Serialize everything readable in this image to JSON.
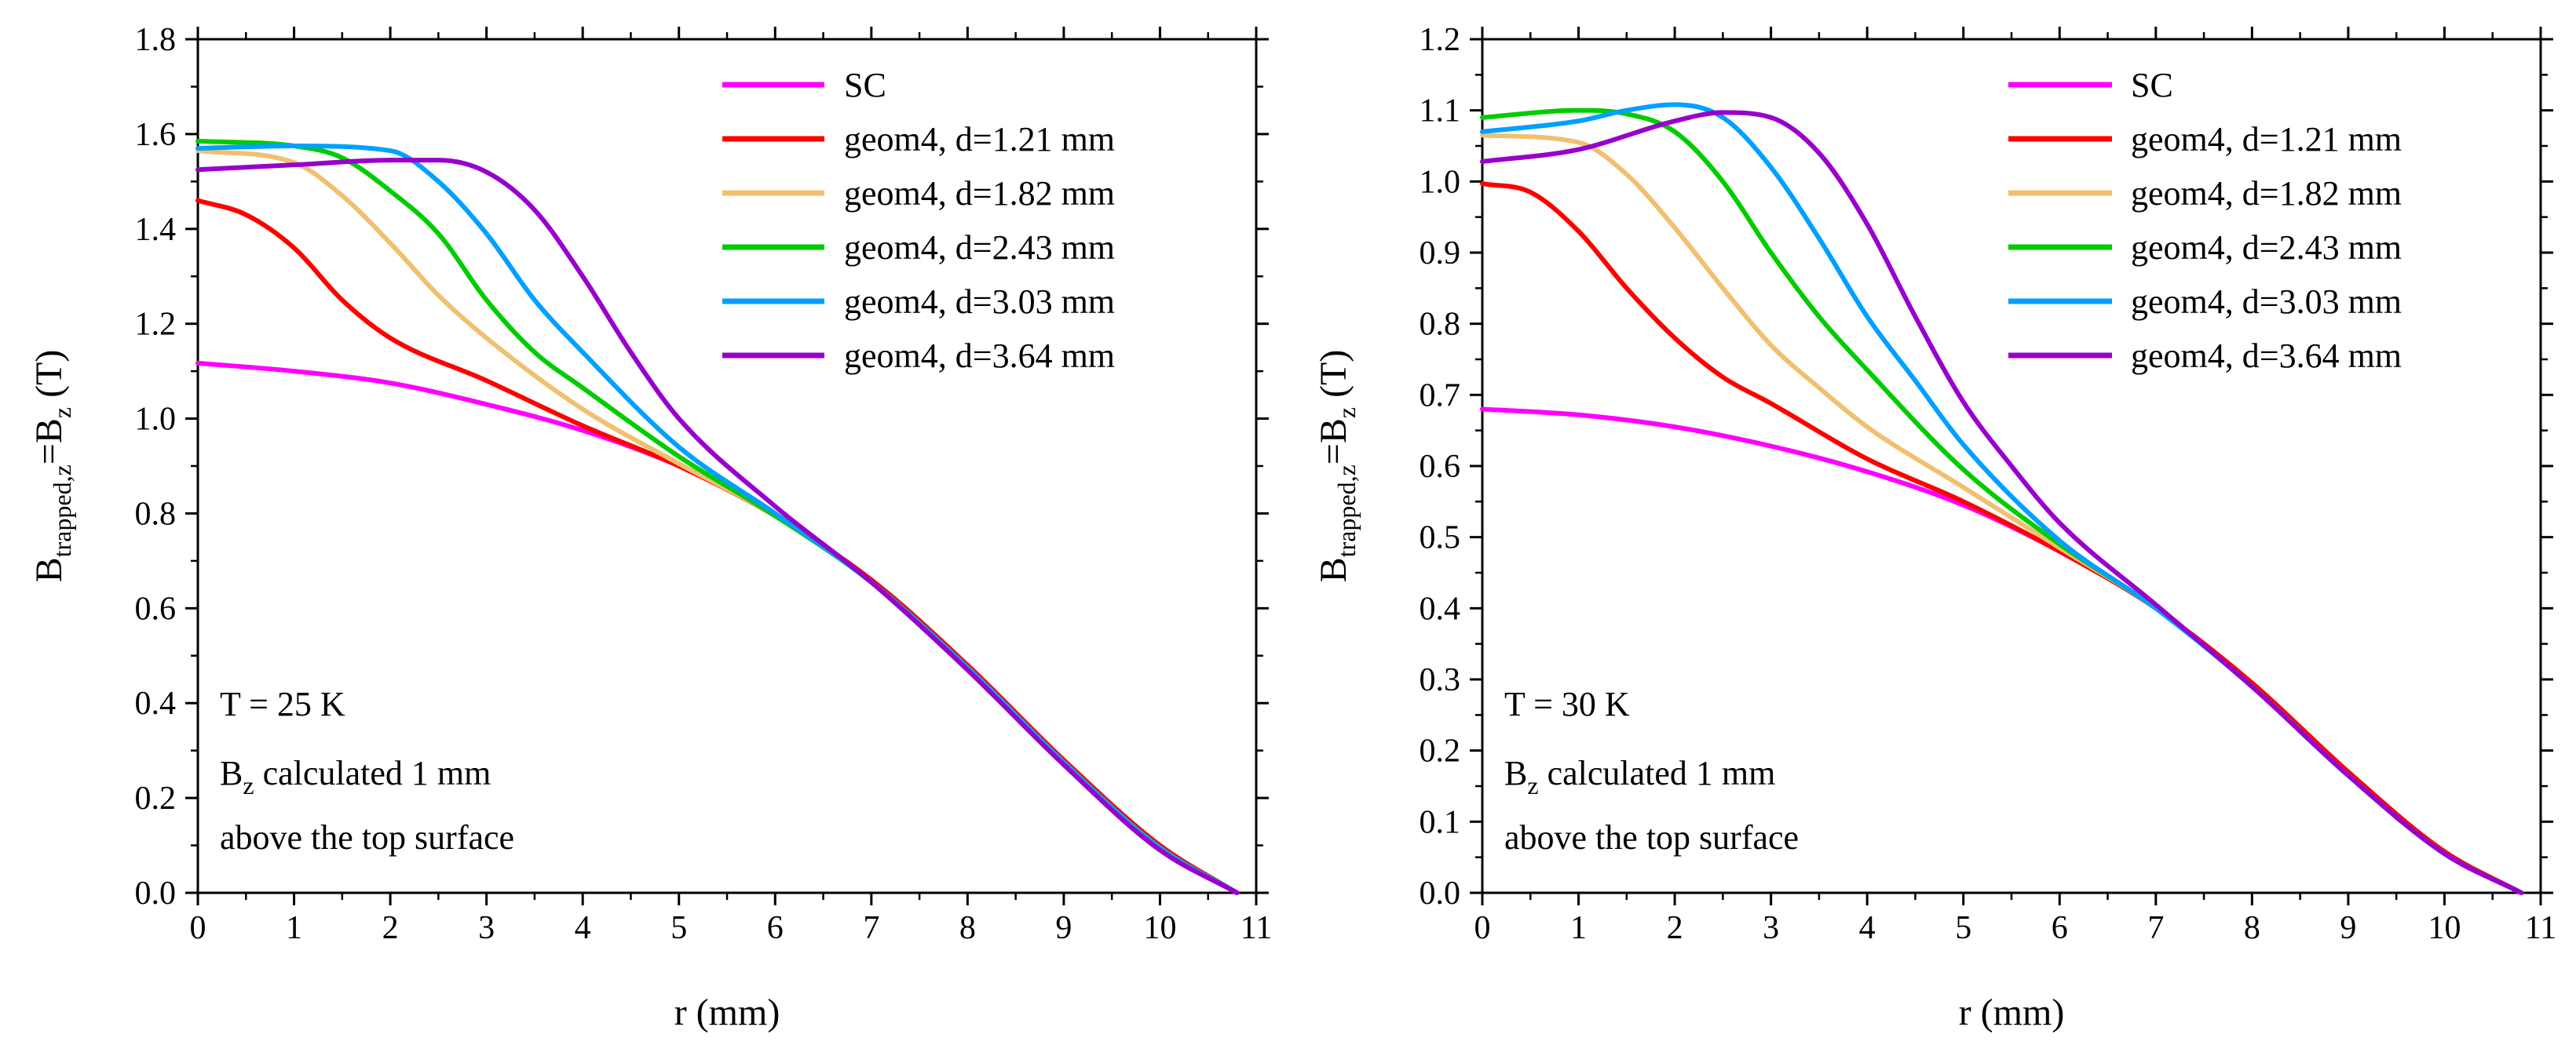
{
  "chart_data": [
    {
      "type": "line",
      "panel": "left",
      "xlabel": "r (mm)",
      "ylabel_parts": {
        "main": "B",
        "sub": "trapped,z",
        "eq": "=B",
        "sub2": "z",
        "unit": " (T)"
      },
      "xlim": [
        0,
        11
      ],
      "ylim": [
        0,
        1.8
      ],
      "x_ticks": [
        0,
        1,
        2,
        3,
        4,
        5,
        6,
        7,
        8,
        9,
        10,
        11
      ],
      "y_ticks": [
        0.0,
        0.2,
        0.4,
        0.6,
        0.8,
        1.0,
        1.2,
        1.4,
        1.6,
        1.8
      ],
      "y_tick_decimals": 1,
      "grid": false,
      "legend_position": "top-right",
      "annotation": {
        "line1": "T = 25 K",
        "line2_main": "B",
        "line2_sub": "z",
        "line2_rest": " calculated 1 mm",
        "line3": "above the top surface"
      },
      "series": [
        {
          "name": "SC",
          "color": "#ff00ff",
          "points": [
            [
              0,
              1.117
            ],
            [
              1,
              1.1
            ],
            [
              2,
              1.075
            ],
            [
              3,
              1.03
            ],
            [
              4,
              0.975
            ],
            [
              5,
              0.9
            ],
            [
              6,
              0.795
            ],
            [
              7,
              0.655
            ],
            [
              8,
              0.475
            ],
            [
              9,
              0.275
            ],
            [
              10,
              0.095
            ],
            [
              10.8,
              0.0
            ]
          ]
        },
        {
          "name": "geom4, d=1.21 mm",
          "color": "#ff0000",
          "points": [
            [
              0,
              1.46
            ],
            [
              0.5,
              1.43
            ],
            [
              1,
              1.36
            ],
            [
              1.5,
              1.25
            ],
            [
              2,
              1.17
            ],
            [
              3,
              1.08
            ],
            [
              4,
              0.985
            ],
            [
              5,
              0.9
            ],
            [
              6,
              0.795
            ],
            [
              7,
              0.66
            ],
            [
              8,
              0.48
            ],
            [
              9,
              0.28
            ],
            [
              10,
              0.1
            ],
            [
              10.8,
              0.0
            ]
          ]
        },
        {
          "name": "geom4, d=1.82 mm",
          "color": "#f0c070",
          "points": [
            [
              0,
              1.565
            ],
            [
              1,
              1.54
            ],
            [
              1.5,
              1.47
            ],
            [
              2,
              1.37
            ],
            [
              2.5,
              1.26
            ],
            [
              3,
              1.17
            ],
            [
              4,
              1.02
            ],
            [
              5,
              0.905
            ],
            [
              6,
              0.795
            ],
            [
              7,
              0.655
            ],
            [
              8,
              0.475
            ],
            [
              9,
              0.275
            ],
            [
              10,
              0.095
            ],
            [
              10.8,
              0.0
            ]
          ]
        },
        {
          "name": "geom4, d=2.43 mm",
          "color": "#00cc00",
          "points": [
            [
              0,
              1.585
            ],
            [
              1,
              1.575
            ],
            [
              1.5,
              1.55
            ],
            [
              2,
              1.48
            ],
            [
              2.5,
              1.39
            ],
            [
              3,
              1.25
            ],
            [
              3.5,
              1.14
            ],
            [
              4,
              1.065
            ],
            [
              5,
              0.92
            ],
            [
              6,
              0.795
            ],
            [
              7,
              0.655
            ],
            [
              8,
              0.475
            ],
            [
              9,
              0.275
            ],
            [
              10,
              0.095
            ],
            [
              10.8,
              0.0
            ]
          ]
        },
        {
          "name": "geom4, d=3.03 mm",
          "color": "#00a0ff",
          "points": [
            [
              0,
              1.57
            ],
            [
              1,
              1.575
            ],
            [
              2,
              1.565
            ],
            [
              2.5,
              1.5
            ],
            [
              3,
              1.39
            ],
            [
              3.5,
              1.25
            ],
            [
              4,
              1.14
            ],
            [
              5,
              0.94
            ],
            [
              6,
              0.8
            ],
            [
              7,
              0.655
            ],
            [
              8,
              0.475
            ],
            [
              9,
              0.275
            ],
            [
              10,
              0.095
            ],
            [
              10.8,
              0.0
            ]
          ]
        },
        {
          "name": "geom4, d=3.64 mm",
          "color": "#9900cc",
          "points": [
            [
              0,
              1.525
            ],
            [
              1,
              1.535
            ],
            [
              2,
              1.545
            ],
            [
              2.5,
              1.545
            ],
            [
              3,
              1.52
            ],
            [
              3.5,
              1.44
            ],
            [
              4,
              1.3
            ],
            [
              4.5,
              1.14
            ],
            [
              5,
              1.0
            ],
            [
              6,
              0.815
            ],
            [
              7,
              0.655
            ],
            [
              8,
              0.47
            ],
            [
              9,
              0.27
            ],
            [
              10,
              0.09
            ],
            [
              10.8,
              0.0
            ]
          ]
        }
      ]
    },
    {
      "type": "line",
      "panel": "right",
      "xlabel": "r (mm)",
      "ylabel_parts": {
        "main": "B",
        "sub": "trapped,z",
        "eq": "=B",
        "sub2": "z",
        "unit": " (T)"
      },
      "xlim": [
        0,
        11
      ],
      "ylim": [
        0,
        1.2
      ],
      "x_ticks": [
        0,
        1,
        2,
        3,
        4,
        5,
        6,
        7,
        8,
        9,
        10,
        11
      ],
      "y_ticks": [
        0.0,
        0.1,
        0.2,
        0.3,
        0.4,
        0.5,
        0.6,
        0.7,
        0.8,
        0.9,
        1.0,
        1.1,
        1.2
      ],
      "y_tick_decimals": 1,
      "grid": false,
      "legend_position": "top-right",
      "annotation": {
        "line1": "T = 30 K",
        "line2_main": "B",
        "line2_sub": "z",
        "line2_rest": " calculated 1 mm",
        "line3": "above the top surface"
      },
      "series": [
        {
          "name": "SC",
          "color": "#ff00ff",
          "points": [
            [
              0,
              0.68
            ],
            [
              1,
              0.672
            ],
            [
              2,
              0.655
            ],
            [
              3,
              0.628
            ],
            [
              4,
              0.592
            ],
            [
              5,
              0.545
            ],
            [
              6,
              0.48
            ],
            [
              7,
              0.4
            ],
            [
              8,
              0.29
            ],
            [
              9,
              0.165
            ],
            [
              10,
              0.055
            ],
            [
              10.8,
              0.0
            ]
          ]
        },
        {
          "name": "geom4, d=1.21 mm",
          "color": "#ff0000",
          "points": [
            [
              0,
              0.997
            ],
            [
              0.5,
              0.985
            ],
            [
              1,
              0.93
            ],
            [
              1.5,
              0.85
            ],
            [
              2,
              0.78
            ],
            [
              2.5,
              0.725
            ],
            [
              3,
              0.688
            ],
            [
              4,
              0.61
            ],
            [
              5,
              0.55
            ],
            [
              6,
              0.48
            ],
            [
              7,
              0.4
            ],
            [
              8,
              0.295
            ],
            [
              9,
              0.17
            ],
            [
              10,
              0.058
            ],
            [
              10.8,
              0.0
            ]
          ]
        },
        {
          "name": "geom4, d=1.82 mm",
          "color": "#f0c070",
          "points": [
            [
              0,
              1.065
            ],
            [
              1,
              1.055
            ],
            [
              1.5,
              1.01
            ],
            [
              2,
              0.935
            ],
            [
              2.5,
              0.85
            ],
            [
              3,
              0.77
            ],
            [
              3.5,
              0.71
            ],
            [
              4,
              0.655
            ],
            [
              5,
              0.57
            ],
            [
              6,
              0.485
            ],
            [
              7,
              0.4
            ],
            [
              8,
              0.29
            ],
            [
              9,
              0.165
            ],
            [
              10,
              0.055
            ],
            [
              10.8,
              0.0
            ]
          ]
        },
        {
          "name": "geom4, d=2.43 mm",
          "color": "#00cc00",
          "points": [
            [
              0,
              1.09
            ],
            [
              1,
              1.1
            ],
            [
              1.5,
              1.095
            ],
            [
              2,
              1.07
            ],
            [
              2.5,
              1.0
            ],
            [
              3,
              0.9
            ],
            [
              3.5,
              0.81
            ],
            [
              4,
              0.735
            ],
            [
              5,
              0.595
            ],
            [
              6,
              0.49
            ],
            [
              7,
              0.4
            ],
            [
              8,
              0.29
            ],
            [
              9,
              0.165
            ],
            [
              10,
              0.055
            ],
            [
              10.8,
              0.0
            ]
          ]
        },
        {
          "name": "geom4, d=3.03 mm",
          "color": "#00a0ff",
          "points": [
            [
              0,
              1.07
            ],
            [
              1,
              1.085
            ],
            [
              1.5,
              1.1
            ],
            [
              2,
              1.108
            ],
            [
              2.5,
              1.09
            ],
            [
              3,
              1.02
            ],
            [
              3.5,
              0.92
            ],
            [
              4,
              0.81
            ],
            [
              4.5,
              0.72
            ],
            [
              5,
              0.63
            ],
            [
              6,
              0.495
            ],
            [
              7,
              0.4
            ],
            [
              8,
              0.29
            ],
            [
              9,
              0.165
            ],
            [
              10,
              0.055
            ],
            [
              10.8,
              0.0
            ]
          ]
        },
        {
          "name": "geom4, d=3.64 mm",
          "color": "#9900cc",
          "points": [
            [
              0,
              1.028
            ],
            [
              1,
              1.045
            ],
            [
              2,
              1.085
            ],
            [
              2.5,
              1.097
            ],
            [
              3,
              1.09
            ],
            [
              3.5,
              1.04
            ],
            [
              4,
              0.94
            ],
            [
              4.5,
              0.81
            ],
            [
              5,
              0.69
            ],
            [
              5.5,
              0.6
            ],
            [
              6,
              0.52
            ],
            [
              7,
              0.405
            ],
            [
              8,
              0.29
            ],
            [
              9,
              0.165
            ],
            [
              10,
              0.055
            ],
            [
              10.8,
              0.0
            ]
          ]
        }
      ]
    }
  ]
}
